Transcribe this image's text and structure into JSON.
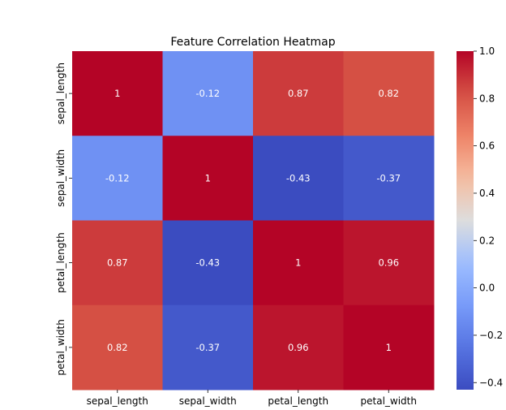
{
  "chart_data": {
    "type": "heatmap",
    "title": "Feature Correlation Heatmap",
    "xlabel": "",
    "ylabel": "",
    "x_categories": [
      "sepal_length",
      "sepal_width",
      "petal_length",
      "petal_width"
    ],
    "y_categories": [
      "sepal_length",
      "sepal_width",
      "petal_length",
      "petal_width"
    ],
    "values": [
      [
        1,
        -0.12,
        0.87,
        0.82
      ],
      [
        -0.12,
        1,
        -0.43,
        -0.37
      ],
      [
        0.87,
        -0.43,
        1,
        0.96
      ],
      [
        0.82,
        -0.37,
        0.96,
        1
      ]
    ],
    "cell_labels": [
      [
        "1",
        "-0.12",
        "0.87",
        "0.82"
      ],
      [
        "-0.12",
        "1",
        "-0.43",
        "-0.37"
      ],
      [
        "0.87",
        "-0.43",
        "1",
        "0.96"
      ],
      [
        "0.82",
        "-0.37",
        "0.96",
        "1"
      ]
    ],
    "colormap": "coolwarm",
    "colorbar": {
      "range": [
        -0.43,
        1.0
      ],
      "ticks": [
        1.0,
        0.8,
        0.6,
        0.4,
        0.2,
        0.0,
        -0.2,
        -0.4
      ],
      "tick_labels": [
        "1.0",
        "0.8",
        "0.6",
        "0.4",
        "0.2",
        "0.0",
        "−0.2",
        "−0.4"
      ]
    },
    "grid": false,
    "legend": "colorbar-right"
  }
}
